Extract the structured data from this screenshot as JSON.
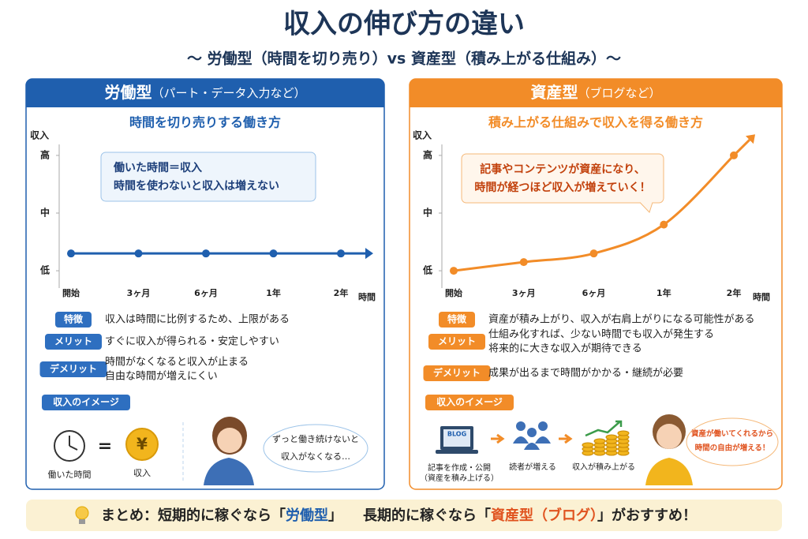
{
  "title": "収入の伸び方の違い",
  "subtitle": "〜 労働型（時間を切り売り）vs 資産型（積み上がる仕組み）〜",
  "panels": [
    {
      "name": "労働型",
      "note": "（パート・データ入力など）",
      "features": [
        {
          "tag": "特徴",
          "lines": [
            "収入は時間に比例するため、上限がある"
          ]
        },
        {
          "tag": "メリット",
          "lines": [
            "すぐに収入が得られる・安定しやすい"
          ]
        },
        {
          "tag": "デメリット",
          "lines": [
            "時間がなくなると収入が止まる",
            "自由な時間が増えにくい"
          ]
        }
      ],
      "image_label": "収入のイメージ",
      "image": {
        "time_caption": "働いた時間",
        "equals": "=",
        "coin": "¥",
        "income_caption": "収入",
        "bubble": [
          "ずっと働き続けないと",
          "収入がなくなる…"
        ]
      }
    },
    {
      "name": "資産型",
      "note": "（ブログなど）",
      "features": [
        {
          "tag": "特徴",
          "lines": [
            "資産が積み上がり、収入が右肩上がりになる可能性がある"
          ]
        },
        {
          "tag": "メリット",
          "lines": [
            "仕組み化すれば、少ない時間でも収入が発生する",
            "将来的に大きな収入が期待できる"
          ]
        },
        {
          "tag": "デメリット",
          "lines": [
            "成果が出るまで時間がかかる・継続が必要"
          ]
        }
      ],
      "image_label": "収入のイメージ",
      "image": {
        "laptop": "BLOG",
        "step1": [
          "記事を作成・公開",
          "（資産を積み上げる）"
        ],
        "step2": "読者が増える",
        "step3": "収入が積み上がる",
        "bubble": [
          "資産が働いてくれるから",
          "時間の自由が増える！"
        ]
      }
    }
  ],
  "chart_data": [
    {
      "type": "line",
      "title": "時間を切り売りする働き方",
      "y_label": "収入",
      "x_label": "時間",
      "categories": [
        "開始",
        "3ヶ月",
        "6ヶ月",
        "1年",
        "2年"
      ],
      "values": [
        1.3,
        1.3,
        1.3,
        1.3,
        1.3
      ],
      "color": "#1f5fae",
      "ylim": [
        0.7,
        3.3
      ],
      "yticks": [
        {
          "value": 1,
          "label": "低"
        },
        {
          "value": 2,
          "label": "中"
        },
        {
          "value": 3,
          "label": "高"
        }
      ],
      "annotation": [
        "働いた時間＝収入",
        "時間を使わないと収入は増えない"
      ]
    },
    {
      "type": "line",
      "title": "積み上がる仕組みで収入を得る働き方",
      "y_label": "収入",
      "x_label": "時間",
      "categories": [
        "開始",
        "3ヶ月",
        "6ヶ月",
        "1年",
        "2年"
      ],
      "values": [
        1.0,
        1.15,
        1.3,
        1.8,
        3.0
      ],
      "color": "#f28c28",
      "ylim": [
        0.7,
        3.3
      ],
      "yticks": [
        {
          "value": 1,
          "label": "低"
        },
        {
          "value": 2,
          "label": "中"
        },
        {
          "value": 3,
          "label": "高"
        }
      ],
      "annotation": [
        "記事やコンテンツが資産になり、",
        "時間が経つほど収入が増えていく！"
      ]
    }
  ],
  "summary": {
    "short": {
      "lead": "まとめ：短期的に稼ぐなら「",
      "key": "労働型",
      "tail": "」"
    },
    "long": {
      "lead": "長期的に稼ぐなら「",
      "key": "資産型（ブログ）",
      "tail": "」がおすすめ！"
    }
  }
}
